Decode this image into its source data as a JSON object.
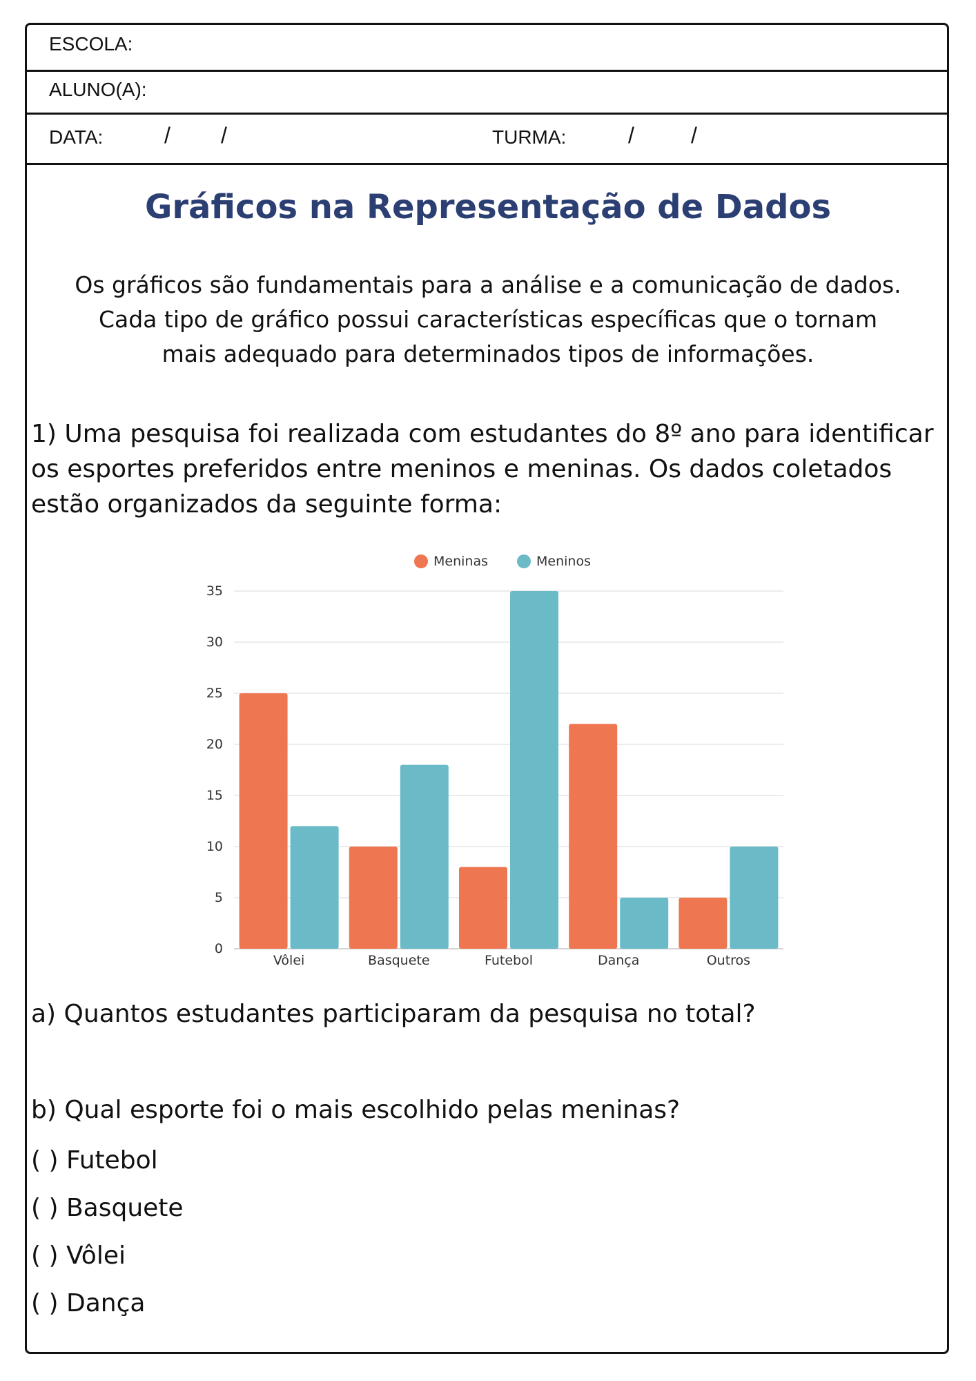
{
  "header": {
    "school_label": "ESCOLA:",
    "student_label": "ALUNO(A):",
    "date_label": "DATA:",
    "class_label": "TURMA:",
    "slash": "/"
  },
  "title": "Gráficos na Representação de Dados",
  "intro": [
    "Os gráficos são fundamentais para a análise e a comunicação de dados.",
    "Cada tipo de gráfico possui características específicas que o tornam",
    "mais adequado para determinados tipos de informações."
  ],
  "question1": [
    "1) Uma pesquisa foi realizada com estudantes do 8º ano para identificar",
    "os esportes preferidos entre meninos e meninas. Os dados coletados",
    "estão organizados da seguinte forma:"
  ],
  "chart_data": {
    "type": "bar",
    "title": "",
    "xlabel": "",
    "ylabel": "",
    "categories": [
      "Vôlei",
      "Basquete",
      "Futebol",
      "Dança",
      "Outros"
    ],
    "series": [
      {
        "name": "Meninas",
        "values": [
          25,
          10,
          8,
          22,
          5
        ],
        "color": "#ee7752"
      },
      {
        "name": "Meninos",
        "values": [
          12,
          18,
          35,
          5,
          10
        ],
        "color": "#6abac7"
      }
    ],
    "ylim": [
      0,
      35
    ],
    "yticks": [
      0,
      5,
      10,
      15,
      20,
      25,
      30,
      35
    ],
    "grid": true,
    "legend": "top-center"
  },
  "question_a": "a) Quantos estudantes participaram da pesquisa no total?",
  "question_b": "b) Qual esporte foi o mais escolhido pelas meninas?",
  "options": [
    "( ) Futebol",
    "( ) Basquete",
    "( ) Vôlei",
    "( ) Dança"
  ]
}
